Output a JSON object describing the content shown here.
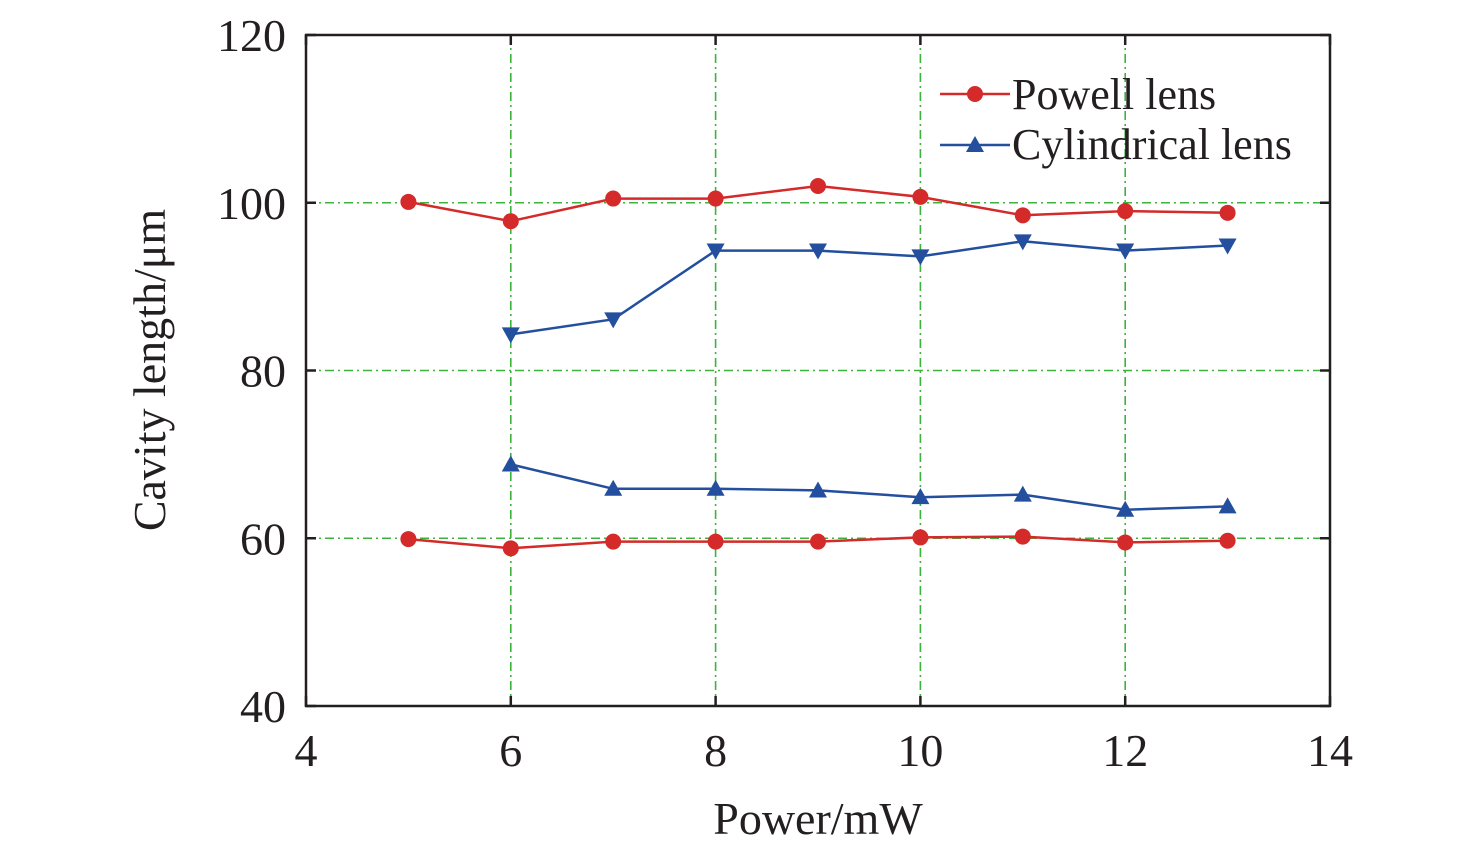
{
  "chart_data": {
    "type": "line",
    "title": "",
    "xlabel": "Power/mW",
    "ylabel": "Cavity length/μm",
    "xlim": [
      4,
      14
    ],
    "ylim": [
      40,
      120
    ],
    "xticks": [
      4,
      6,
      8,
      10,
      12,
      14
    ],
    "yticks": [
      40,
      60,
      80,
      100,
      120
    ],
    "xtick_labels": [
      "4",
      "6",
      "8",
      "10",
      "12",
      "14"
    ],
    "ytick_labels": [
      "40",
      "60",
      "80",
      "100",
      "120"
    ],
    "grid": true,
    "legend_position": "top-right",
    "legend": [
      {
        "label": "Powell lens",
        "color": "#d42a2a",
        "marker": "circle"
      },
      {
        "label": "Cylindrical lens",
        "color": "#234f9e",
        "marker": "triangle-up"
      }
    ],
    "series": [
      {
        "name": "Powell lens (upper)",
        "color": "#d42a2a",
        "marker": "circle",
        "x": [
          5,
          6,
          7,
          8,
          9,
          10,
          11,
          12,
          13
        ],
        "y": [
          100.1,
          97.8,
          100.5,
          100.5,
          102.0,
          100.7,
          98.5,
          99.0,
          98.8
        ]
      },
      {
        "name": "Cylindrical lens (upper)",
        "color": "#234f9e",
        "marker": "triangle-down",
        "x": [
          6,
          7,
          8,
          9,
          10,
          11,
          12,
          13
        ],
        "y": [
          84.3,
          86.1,
          94.3,
          94.3,
          93.6,
          95.4,
          94.3,
          94.9
        ]
      },
      {
        "name": "Cylindrical lens (lower)",
        "color": "#234f9e",
        "marker": "triangle-up",
        "x": [
          6,
          7,
          8,
          9,
          10,
          11,
          12,
          13
        ],
        "y": [
          68.8,
          65.9,
          65.9,
          65.7,
          64.9,
          65.2,
          63.4,
          63.8
        ]
      },
      {
        "name": "Powell lens (lower)",
        "color": "#d42a2a",
        "marker": "circle",
        "x": [
          5,
          6,
          7,
          8,
          9,
          10,
          11,
          12,
          13
        ],
        "y": [
          59.9,
          58.8,
          59.6,
          59.6,
          59.6,
          60.1,
          60.2,
          59.5,
          59.7
        ]
      }
    ]
  }
}
